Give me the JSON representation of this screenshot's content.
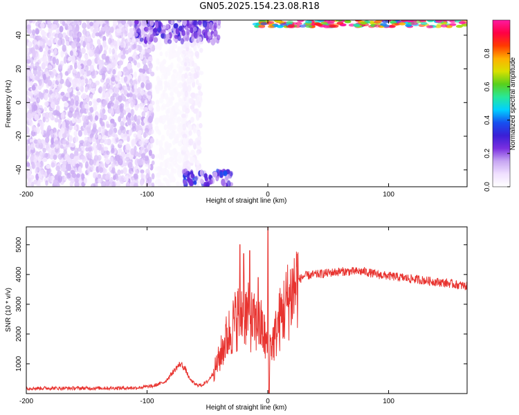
{
  "title": "GN05.2025.154.23.08.R18",
  "colors": {
    "line": "#e8332f",
    "frame": "#000000",
    "colormap": [
      "#ffffff",
      "#f0e0ff",
      "#c7a6f2",
      "#7a2fe0",
      "#3a1fd6",
      "#1650f0",
      "#00d0ff",
      "#27e89a",
      "#58d01c",
      "#d8e000",
      "#ffb000",
      "#ff3a00",
      "#ff0045",
      "#ff1aa0"
    ]
  },
  "chart_data": [
    {
      "type": "heatmap",
      "title": "",
      "xlabel": "Height of straight line (km)",
      "ylabel": "Frequency (Hz)",
      "xlim": [
        -200,
        165
      ],
      "ylim": [
        -50,
        49
      ],
      "x_ticks": [
        -200,
        -100,
        0,
        100
      ],
      "x_tick_labels": [
        "-200",
        "-100",
        "0",
        "100"
      ],
      "y_ticks": [
        -40,
        -20,
        0,
        20,
        40
      ],
      "y_tick_labels": [
        "-40",
        "-20",
        "0",
        "20",
        "40"
      ],
      "colorbar": {
        "label": "Normalized spectral amplitude",
        "range": [
          0,
          1
        ],
        "ticks": [
          0.0,
          0.2,
          0.4,
          0.6,
          0.8
        ],
        "tick_labels": [
          "0.0",
          "0.2",
          "0.4",
          "0.6",
          "0.8"
        ]
      },
      "regions": [
        {
          "x": [
            -200,
            -95
          ],
          "freq": [
            -50,
            49
          ],
          "amplitude": 0.12
        },
        {
          "x": [
            -92,
            -65
          ],
          "freq": [
            -50,
            49
          ],
          "amplitude": 0.02
        },
        {
          "x": [
            -70,
            -55
          ],
          "freq": [
            -50,
            49
          ],
          "amplitude": 0.05
        },
        {
          "x": [
            -110,
            -40
          ],
          "freq": [
            36,
            49
          ],
          "amplitude": 0.25
        },
        {
          "x": [
            -70,
            -30
          ],
          "freq": [
            -50,
            -41
          ],
          "amplitude": 0.3
        },
        {
          "x": [
            -10,
            165
          ],
          "freq": [
            45,
            49
          ],
          "amplitude": 0.9
        }
      ]
    },
    {
      "type": "line",
      "title": "",
      "xlabel": "Height of straight line (km)",
      "ylabel": "SNR (10 * v/v)",
      "xlim": [
        -200,
        165
      ],
      "ylim": [
        0,
        5600
      ],
      "x_ticks": [
        -200,
        -100,
        0,
        100
      ],
      "x_tick_labels": [
        "-200",
        "-100",
        "0",
        "100"
      ],
      "y_ticks": [
        1000,
        2000,
        3000,
        4000,
        5000
      ],
      "y_tick_labels": [
        "1000",
        "2000",
        "3000",
        "4000",
        "5000"
      ],
      "x": [
        -200,
        -150,
        -110,
        -95,
        -85,
        -80,
        -75,
        -72,
        -68,
        -65,
        -60,
        -55,
        -50,
        -45,
        -40,
        -35,
        -30,
        -25,
        -20,
        -15,
        -10,
        -5,
        0,
        5,
        10,
        15,
        20,
        25,
        30,
        40,
        50,
        60,
        70,
        80,
        90,
        100,
        110,
        120,
        130,
        140,
        150,
        165
      ],
      "values": [
        180,
        180,
        190,
        250,
        400,
        650,
        900,
        1000,
        800,
        500,
        300,
        280,
        400,
        700,
        1200,
        1800,
        2200,
        2600,
        2800,
        2500,
        2300,
        2200,
        1500,
        1800,
        2500,
        3000,
        3400,
        3800,
        3950,
        4000,
        4050,
        4100,
        4100,
        4100,
        4000,
        3950,
        3900,
        3850,
        3800,
        3750,
        3700,
        3600
      ],
      "spikes": [
        {
          "x": -23,
          "value": 5000
        },
        {
          "x": -20,
          "value": 4700
        },
        {
          "x": -15,
          "value": 4800
        },
        {
          "x": -8,
          "value": 3900
        },
        {
          "x": 0,
          "value": 5600
        },
        {
          "x": 1,
          "value": 0
        }
      ]
    }
  ]
}
